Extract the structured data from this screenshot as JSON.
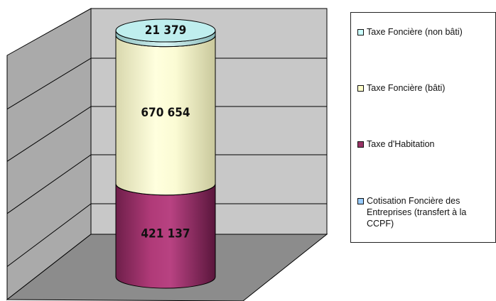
{
  "chart_data": {
    "type": "bar",
    "style": "3d-stacked-cylinder",
    "categories": [
      ""
    ],
    "series": [
      {
        "name": "Taxe d'Habitation",
        "values": [
          421137
        ],
        "label": "421 137",
        "color": "#993366"
      },
      {
        "name": "Taxe Foncière (bâti)",
        "values": [
          670654
        ],
        "label": "670 654",
        "color": "#ffffcc"
      },
      {
        "name": "Taxe Foncière (non bâti)",
        "values": [
          21379
        ],
        "label": "21 379",
        "color": "#ccffff"
      },
      {
        "name": "Cotisation Foncière des Entreprises (transfert à la CCPF)",
        "values": [
          0
        ],
        "label": "",
        "color": "#99ccff"
      }
    ],
    "legend_order": [
      "Taxe Foncière (non bâti)",
      "Taxe Foncière (bâti)",
      "Taxe d'Habitation",
      "Cotisation Foncière des Entreprises (transfert à la CCPF)"
    ],
    "legend_labels": {
      "nonbati": "Taxe Foncière (non bâti)",
      "bati": "Taxe Foncière (bâti)",
      "habitation": "Taxe d'Habitation",
      "cfe": "Cotisation Foncière des Entreprises (transfert à la CCPF)"
    },
    "legend_position": "right",
    "grid": true,
    "title": "",
    "xlabel": "",
    "ylabel": ""
  }
}
